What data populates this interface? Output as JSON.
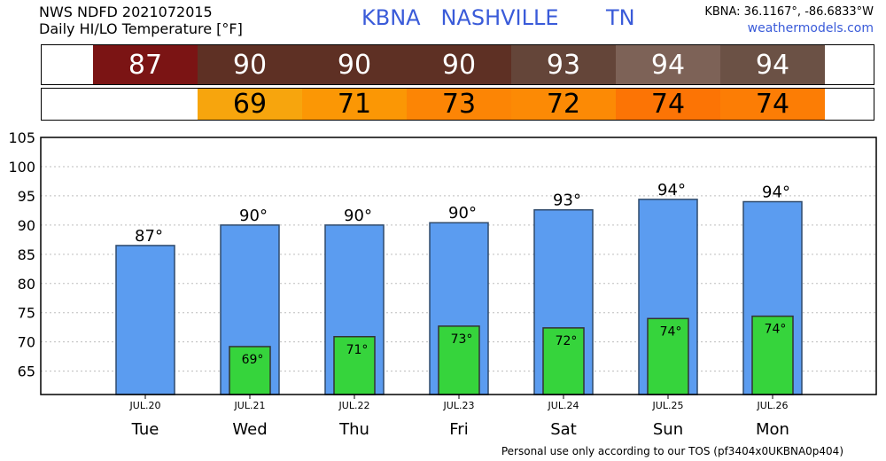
{
  "header": {
    "line1": "NWS NDFD 2021072015",
    "line2": "Daily HI/LO Temperature [°F]",
    "station": "KBNA",
    "city": "NASHVILLE",
    "state": "TN",
    "coords": "KBNA: 36.1167°, -86.6833°W",
    "site": "weathermodels.com"
  },
  "strip_hi": [
    {
      "value": "87",
      "color": "#7b1414"
    },
    {
      "value": "90",
      "color": "#5e3024"
    },
    {
      "value": "90",
      "color": "#5e3024"
    },
    {
      "value": "90",
      "color": "#5e3024"
    },
    {
      "value": "93",
      "color": "#644539"
    },
    {
      "value": "94",
      "color": "#7d6257"
    },
    {
      "value": "94",
      "color": "#6b5145"
    }
  ],
  "strip_lo": [
    {
      "value": "69",
      "color": "#f7a50d"
    },
    {
      "value": "71",
      "color": "#fb9705"
    },
    {
      "value": "73",
      "color": "#fc8505"
    },
    {
      "value": "72",
      "color": "#fc8a05"
    },
    {
      "value": "74",
      "color": "#fc7405"
    },
    {
      "value": "74",
      "color": "#fc7d05"
    }
  ],
  "chart_data": {
    "type": "bar",
    "categories": [
      "Tue",
      "Wed",
      "Thu",
      "Fri",
      "Sat",
      "Sun",
      "Mon"
    ],
    "dates": [
      "JUL.20",
      "JUL.21",
      "JUL.22",
      "JUL.23",
      "JUL.24",
      "JUL.25",
      "JUL.26"
    ],
    "series": [
      {
        "values": [
          86.5,
          90,
          90,
          90.4,
          92.6,
          94.4,
          94
        ],
        "labels": [
          "87°",
          "90°",
          "90°",
          "90°",
          "93°",
          "94°",
          "94°"
        ],
        "color": "#5b9cf0"
      },
      {
        "values": [
          null,
          69.2,
          70.9,
          72.7,
          72.4,
          74,
          74.4
        ],
        "labels": [
          "",
          "69°",
          "71°",
          "73°",
          "72°",
          "74°",
          "74°"
        ],
        "color": "#36d43c"
      }
    ],
    "yticks": [
      65,
      70,
      75,
      80,
      85,
      90,
      95,
      100,
      105
    ],
    "ylim": [
      61,
      105
    ],
    "grid": "horizontal-dashed"
  },
  "footer": "Personal use only according to our TOS (pf3404x0UKBNA0p404)"
}
